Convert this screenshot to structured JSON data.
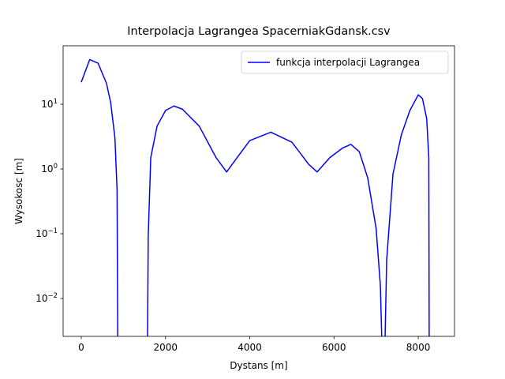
{
  "chart_data": {
    "type": "line",
    "title": "Interpolacja Lagrangea SpacerniakGdansk.csv",
    "x_label": "Dystans [m]",
    "y_label": "Wysokosc [m]",
    "y_scale": "log",
    "legend": "upper right",
    "x": [
      0,
      200,
      400,
      600,
      700,
      800,
      850,
      870,
      1570,
      1590,
      1650,
      1800,
      2000,
      2200,
      2400,
      2800,
      3200,
      3450,
      3700,
      4000,
      4500,
      5000,
      5400,
      5600,
      5900,
      6200,
      6400,
      6600,
      6800,
      7000,
      7100,
      7150,
      7175,
      7200,
      7250,
      7400,
      7600,
      7800,
      8000,
      8100,
      8200,
      8250,
      8260
    ],
    "series": [
      {
        "name": "funkcja interpolacji Lagrangea",
        "color": "#0000ff",
        "values": [
          21.9,
          49,
          43,
          21,
          10.5,
          3,
          0.48,
          0.001,
          0.001,
          0.09,
          1.5,
          4.6,
          8,
          9.4,
          8.4,
          4.6,
          1.5,
          0.9,
          1.5,
          2.75,
          3.7,
          2.6,
          1.18,
          0.9,
          1.5,
          2.1,
          2.4,
          1.85,
          0.73,
          0.12,
          0.016,
          0.001,
          null,
          0.001,
          0.039,
          0.84,
          3.4,
          8,
          14,
          12.2,
          6,
          1.5,
          0.001
        ]
      }
    ],
    "xlim": [
      -430,
      8860
    ],
    "ylim": [
      0.0026,
      80
    ],
    "xticks": [
      0,
      2000,
      4000,
      6000,
      8000
    ],
    "yticks": [
      {
        "value": 0.01,
        "label": "10^−2"
      },
      {
        "value": 0.1,
        "label": "10^−1"
      },
      {
        "value": 1,
        "label": "10^0"
      },
      {
        "value": 10,
        "label": "10^1"
      }
    ]
  }
}
